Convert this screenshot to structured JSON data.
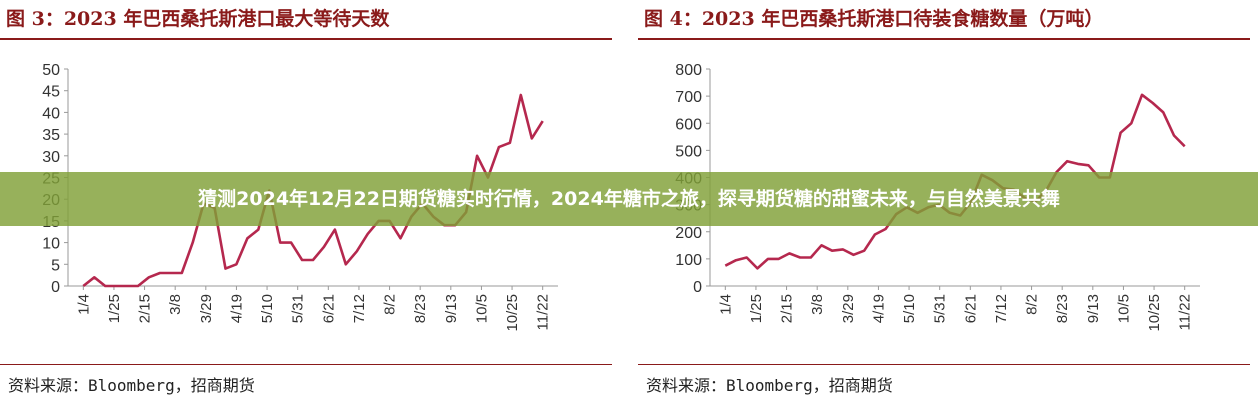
{
  "banner": {
    "text": "猜测2024年12月22日期货糖实时行情，2024年糖市之旅，探寻期货糖的甜蜜未来，与自然美景共舞"
  },
  "colors": {
    "line": "#b5284e",
    "title": "#8a1a1a",
    "banner": "#80a037"
  },
  "chart_data": [
    {
      "type": "line",
      "title": "图 3：2023 年巴西桑托斯港口最大等待天数",
      "source": "资料来源：Bloomberg，招商期货",
      "x_tick_labels": [
        "1/4",
        "1/25",
        "2/15",
        "3/8",
        "3/29",
        "4/19",
        "5/10",
        "5/31",
        "6/21",
        "7/12",
        "8/2",
        "8/23",
        "9/13",
        "10/5",
        "10/25",
        "11/22"
      ],
      "ylim": [
        0,
        50
      ],
      "yticks": [
        0,
        5,
        10,
        15,
        20,
        25,
        30,
        35,
        40,
        45,
        50
      ],
      "grid": false,
      "series": [
        {
          "values": [
            0,
            2,
            0,
            0,
            0,
            0,
            2,
            3,
            3,
            3,
            10,
            19,
            18,
            4,
            5,
            11,
            13,
            22,
            10,
            10,
            6,
            6,
            9,
            13,
            5,
            8,
            12,
            15,
            15,
            11,
            16,
            19,
            16,
            14,
            14,
            17,
            30,
            25,
            32,
            33,
            44,
            34,
            38
          ]
        }
      ]
    },
    {
      "type": "line",
      "title": "图 4：2023 年巴西桑托斯港口待装食糖数量（万吨）",
      "source": "资料来源：Bloomberg，招商期货",
      "x_tick_labels": [
        "1/4",
        "1/25",
        "2/15",
        "3/8",
        "3/29",
        "4/19",
        "5/10",
        "5/31",
        "6/21",
        "7/12",
        "8/2",
        "8/23",
        "9/13",
        "10/5",
        "10/25",
        "11/22"
      ],
      "ylim": [
        0,
        800
      ],
      "yticks": [
        0,
        100,
        200,
        300,
        400,
        500,
        600,
        700,
        800
      ],
      "grid": false,
      "series": [
        {
          "values": [
            75,
            95,
            105,
            65,
            100,
            100,
            120,
            105,
            105,
            150,
            130,
            135,
            115,
            130,
            190,
            210,
            265,
            290,
            270,
            290,
            300,
            270,
            260,
            310,
            410,
            390,
            360,
            355,
            325,
            310,
            350,
            420,
            460,
            450,
            445,
            400,
            400,
            565,
            600,
            705,
            675,
            640,
            555,
            515
          ]
        }
      ]
    }
  ]
}
